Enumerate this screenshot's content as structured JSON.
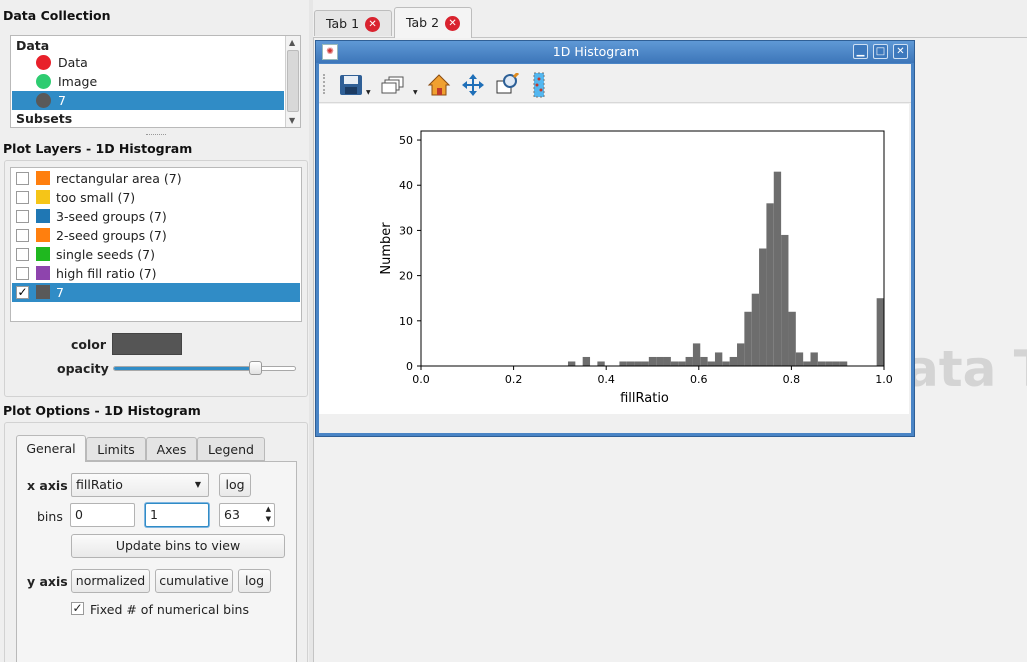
{
  "data_collection": {
    "title": "Data Collection",
    "header": "Data",
    "items": [
      {
        "label": "Data",
        "color": "#e8202a"
      },
      {
        "label": "Image",
        "color": "#2ecc71"
      },
      {
        "label": "7",
        "color": "#595959"
      }
    ],
    "subsets_header": "Subsets"
  },
  "plot_layers": {
    "title": "Plot Layers - 1D Histogram",
    "items": [
      {
        "label": "rectangular area (7)",
        "color": "#ff7f0e",
        "checked": false
      },
      {
        "label": "too small (7)",
        "color": "#f5c518",
        "checked": false
      },
      {
        "label": "3-seed groups (7)",
        "color": "#1f77b4",
        "checked": false
      },
      {
        "label": "2-seed groups (7)",
        "color": "#ff7f0e",
        "checked": false
      },
      {
        "label": "single seeds (7)",
        "color": "#1fb81f",
        "checked": false
      },
      {
        "label": "high fill ratio (7)",
        "color": "#8e44ad",
        "checked": false
      },
      {
        "label": "7",
        "color": "#595959",
        "checked": true
      }
    ],
    "color_label": "color",
    "opacity_label": "opacity",
    "layer_color": "#555555",
    "opacity_value": 0.86
  },
  "plot_options": {
    "title": "Plot Options - 1D Histogram",
    "tabs": [
      "General",
      "Limits",
      "Axes",
      "Legend"
    ],
    "active_tab": "General",
    "x_axis_label": "x axis",
    "x_axis_value": "fillRatio",
    "log_label": "log",
    "bins_label": "bins",
    "bins_min": "0",
    "bins_max": "1",
    "bins_count": "63",
    "update_bins_label": "Update bins to view",
    "y_axis_label": "y axis",
    "normalized_label": "normalized",
    "cumulative_label": "cumulative",
    "y_log_label": "log",
    "fixed_bins_label": "Fixed # of numerical bins"
  },
  "viewer_tabs": [
    {
      "label": "Tab 1",
      "active": false
    },
    {
      "label": "Tab 2",
      "active": true
    }
  ],
  "background_text": "ata T",
  "histogram_window": {
    "title": "1D Histogram",
    "toolbar_icons": [
      "save-icon",
      "window-stack-icon",
      "home-icon",
      "pan-icon",
      "zoom-icon",
      "select-icon"
    ]
  },
  "chart_data": {
    "type": "bar",
    "xlabel": "fillRatio",
    "ylabel": "Number",
    "xlim": [
      0.0,
      1.0
    ],
    "ylim": [
      0,
      52
    ],
    "xticks": [
      "0.0",
      "0.2",
      "0.4",
      "0.6",
      "0.8",
      "1.0"
    ],
    "yticks": [
      "0",
      "10",
      "20",
      "30",
      "40",
      "50"
    ],
    "bin_min": 0,
    "bin_max": 1,
    "bins": 63,
    "bar_color": "#6d6d6d",
    "values": [
      0,
      0,
      0,
      0,
      0,
      0,
      0,
      0,
      0,
      0,
      0,
      0,
      0,
      0,
      0,
      0,
      0,
      0,
      0,
      0,
      1,
      0,
      2,
      0,
      1,
      0,
      0,
      1,
      1,
      1,
      1,
      2,
      2,
      2,
      1,
      1,
      2,
      5,
      2,
      1,
      3,
      1,
      2,
      5,
      12,
      16,
      26,
      36,
      43,
      29,
      12,
      3,
      1,
      3,
      1,
      1,
      1,
      1,
      0,
      0,
      0,
      0,
      15
    ]
  }
}
